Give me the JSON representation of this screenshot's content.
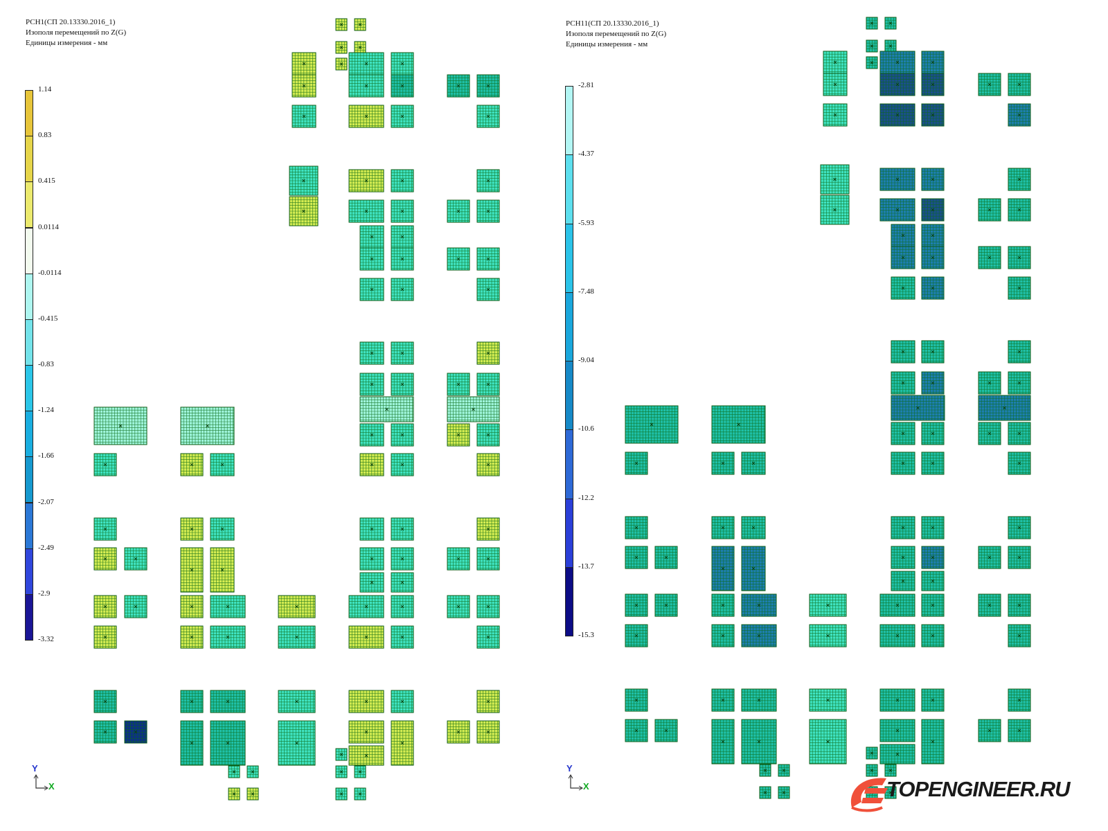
{
  "left": {
    "header": [
      "РСН1(СП 20.13330.2016_1)",
      "Изополя  перемещений по Z(G)",
      "Единицы измерения - мм"
    ],
    "legend_labels": [
      "1.14",
      "0.83",
      "0.415",
      "0.0114",
      "-0.0114",
      "-0.415",
      "-0.83",
      "-1.24",
      "-1.66",
      "-2.07",
      "-2.49",
      "-2.9",
      "-3.32"
    ],
    "legend_colors": [
      "#e7c53a",
      "#e6d54a",
      "#ecea6e",
      "#f3fbef",
      "#aef6f0",
      "#74e3ea",
      "#2bc6e8",
      "#19aee0",
      "#1699cf",
      "#2b78d6",
      "#3046dc",
      "#1a1596"
    ]
  },
  "right": {
    "header": [
      "РСН11(СП 20.13330.2016_1)",
      "Изополя  перемещений по Z(G)",
      "Единицы измерения - мм"
    ],
    "legend_labels": [
      "-2.81",
      "-4.37",
      "-5.93",
      "-7.48",
      "-9.04",
      "-10.6",
      "-12.2",
      "-13.7",
      "-15.3"
    ],
    "legend_colors": [
      "#b3f6f4",
      "#5ddfee",
      "#2bc3e8",
      "#1aa7dc",
      "#1689c7",
      "#2e69d6",
      "#2b3fd8",
      "#0c0c86"
    ]
  },
  "axis": {
    "y": "Y",
    "x": "X"
  },
  "logo": {
    "text": "TOPENGINEER.RU",
    "color": "#f0503a"
  }
}
